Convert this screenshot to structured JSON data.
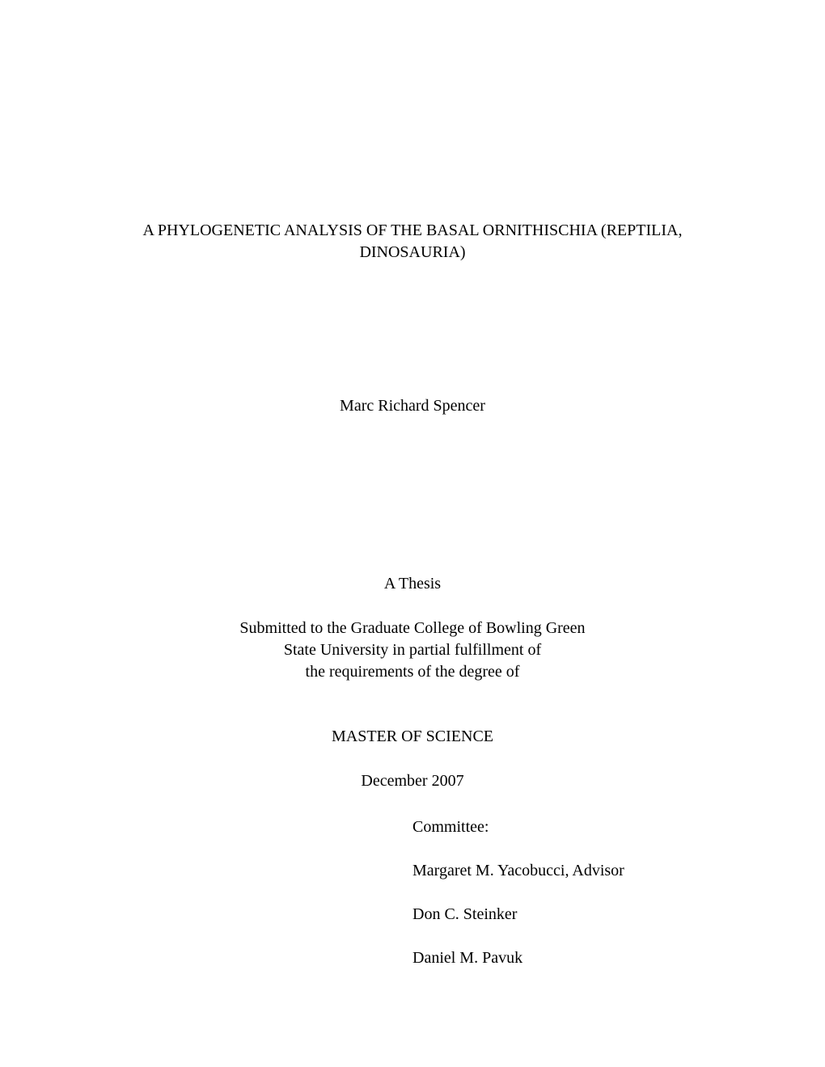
{
  "title": {
    "line1": "A PHYLOGENETIC ANALYSIS OF THE BASAL ORNITHISCHIA (REPTILIA,",
    "line2": "DINOSAURIA)"
  },
  "author": "Marc Richard Spencer",
  "thesis_label": "A Thesis",
  "submitted": {
    "line1": "Submitted to the Graduate College of Bowling Green",
    "line2": "State University in partial fulfillment of",
    "line3": "the requirements of the degree of"
  },
  "degree": "MASTER OF SCIENCE",
  "date": "December 2007",
  "committee": {
    "label": "Committee:",
    "members": [
      "Margaret M. Yacobucci, Advisor",
      "Don C. Steinker",
      "Daniel M. Pavuk"
    ]
  }
}
